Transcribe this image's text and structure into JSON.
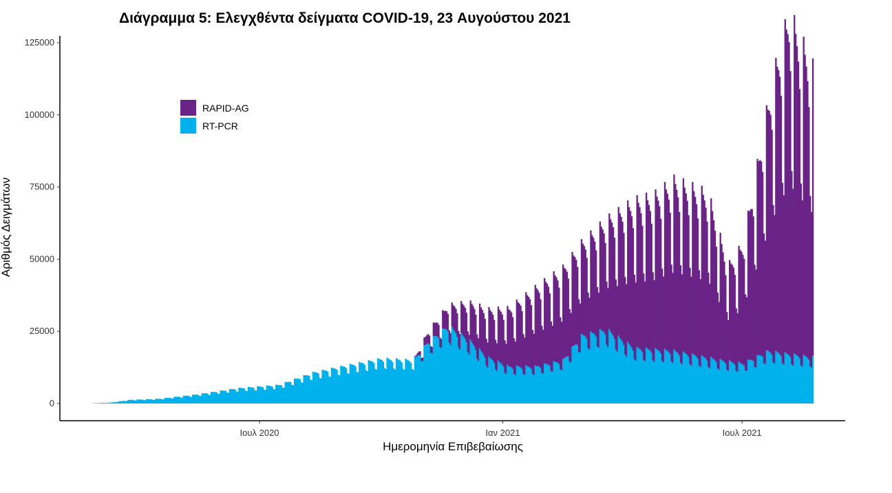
{
  "chart_data": {
    "type": "bar",
    "stacked": true,
    "title": "Διάγραμμα 5: Ελεγχθέντα δείγματα COVID-19, 23 Αυγούστου 2021",
    "xlabel": "Ημερομηνία Επιβεβαίωσης",
    "ylabel": "Αριθμός Δειγμάτων",
    "x_range": [
      "2020-02-26",
      "2021-08-23"
    ],
    "ylim": [
      0,
      125000
    ],
    "y_ticks": [
      0,
      25000,
      50000,
      75000,
      100000,
      125000
    ],
    "x_ticks": [
      {
        "date": "2020-07-01",
        "label": "Ιουλ 2020"
      },
      {
        "date": "2021-01-01",
        "label": "Ιαν 2021"
      },
      {
        "date": "2021-07-01",
        "label": "Ιουλ 2021"
      }
    ],
    "legend_position": "top-left",
    "series": [
      {
        "name": "RAPID-AG",
        "color": "#6A2386",
        "values_key": "rapid_keypoints"
      },
      {
        "name": "RT-PCR",
        "color": "#00B1EB",
        "values_key": "pcr_keypoints"
      }
    ],
    "pcr_keypoints": [
      [
        "2020-02-26",
        100
      ],
      [
        "2020-03-10",
        300
      ],
      [
        "2020-03-25",
        1200
      ],
      [
        "2020-04-15",
        1500
      ],
      [
        "2020-05-15",
        3000
      ],
      [
        "2020-06-15",
        5000
      ],
      [
        "2020-07-15",
        6000
      ],
      [
        "2020-08-10",
        10000
      ],
      [
        "2020-09-01",
        12000
      ],
      [
        "2020-10-01",
        14500
      ],
      [
        "2020-10-25",
        14000
      ],
      [
        "2020-11-05",
        20000
      ],
      [
        "2020-11-20",
        25000
      ],
      [
        "2020-12-05",
        21000
      ],
      [
        "2020-12-20",
        15000
      ],
      [
        "2021-01-05",
        12000
      ],
      [
        "2021-01-25",
        12000
      ],
      [
        "2021-02-15",
        14000
      ],
      [
        "2021-03-01",
        22000
      ],
      [
        "2021-03-20",
        24000
      ],
      [
        "2021-04-10",
        18000
      ],
      [
        "2021-05-10",
        17000
      ],
      [
        "2021-06-15",
        14000
      ],
      [
        "2021-07-01",
        13000
      ],
      [
        "2021-07-20",
        17000
      ],
      [
        "2021-08-23",
        15000
      ]
    ],
    "rapid_keypoints": [
      [
        "2020-02-26",
        0
      ],
      [
        "2020-10-25",
        0
      ],
      [
        "2020-11-05",
        3000
      ],
      [
        "2020-11-20",
        6000
      ],
      [
        "2020-12-10",
        12000
      ],
      [
        "2021-01-05",
        17000
      ],
      [
        "2021-01-25",
        23000
      ],
      [
        "2021-02-15",
        27000
      ],
      [
        "2021-03-01",
        27000
      ],
      [
        "2021-03-20",
        32000
      ],
      [
        "2021-04-10",
        43000
      ],
      [
        "2021-04-25",
        45000
      ],
      [
        "2021-05-10",
        50000
      ],
      [
        "2021-06-05",
        48000
      ],
      [
        "2021-06-20",
        28000
      ],
      [
        "2021-07-01",
        35000
      ],
      [
        "2021-07-10",
        52000
      ],
      [
        "2021-07-25",
        82000
      ],
      [
        "2021-08-05",
        100000
      ],
      [
        "2021-08-23",
        85000
      ]
    ]
  }
}
